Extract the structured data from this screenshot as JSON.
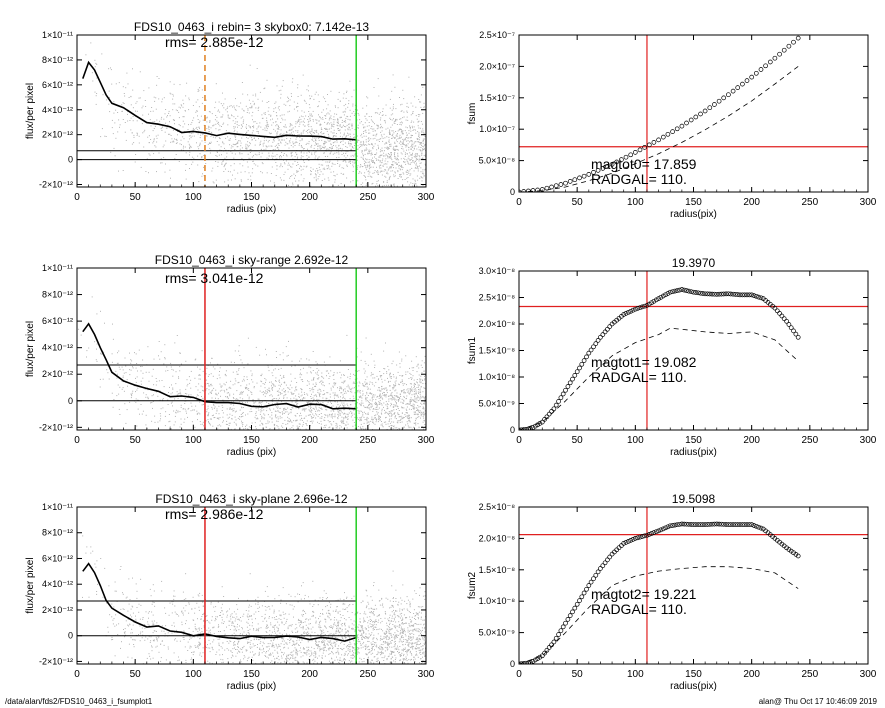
{
  "footer": {
    "path": "/data/alan/fds2/FDS10_0463_i_fsumplot1",
    "stamp": "alan@  Thu Oct 17 10:46:09 2019"
  },
  "colors": {
    "scatter": "#b4b4b4",
    "axes": "#000000",
    "red": "#e02020",
    "green": "#22cc22",
    "orange": "#e08020",
    "profile": "#000000"
  },
  "chart_data": [
    {
      "type": "scatter",
      "title": "FDS10_0463_i rebin= 3    skybox0:  7.142e-13",
      "annotation": "rms= 2.885e-12",
      "xlabel": "radius (pix)",
      "ylabel": "flux/per pixel",
      "xlim": [
        0,
        300
      ],
      "ylim": [
        -2.2e-12,
        1e-11
      ],
      "xticks": [
        0,
        50,
        100,
        150,
        200,
        250,
        300
      ],
      "yticks": [
        {
          "value": 1e-11,
          "label": "1×10⁻¹¹"
        },
        {
          "value": 8e-12,
          "label": "8×10⁻¹²"
        },
        {
          "value": 6e-12,
          "label": "6×10⁻¹²"
        },
        {
          "value": 4e-12,
          "label": "4×10⁻¹²"
        },
        {
          "value": 2e-12,
          "label": "2×10⁻¹²"
        },
        {
          "value": 0,
          "label": "0"
        },
        {
          "value": -2e-12,
          "label": "-2×10⁻¹²"
        }
      ],
      "hlines": [
        0,
        7.142e-13
      ],
      "vlines": [
        {
          "x": 110,
          "color": "orange",
          "dash": true
        },
        {
          "x": 240,
          "color": "green"
        }
      ],
      "profile": {
        "x": [
          5,
          10,
          15,
          20,
          25,
          30,
          40,
          50,
          60,
          70,
          80,
          90,
          100,
          110,
          120,
          130,
          140,
          150,
          160,
          170,
          180,
          190,
          200,
          210,
          220,
          230,
          240
        ],
        "y": [
          6.5e-12,
          7.8e-12,
          7.2e-12,
          6.2e-12,
          5.2e-12,
          4.6e-12,
          4e-12,
          3.4e-12,
          3e-12,
          2.7e-12,
          2.5e-12,
          2.3e-12,
          2.15e-12,
          2.05e-12,
          2e-12,
          1.95e-12,
          1.9e-12,
          1.9e-12,
          1.85e-12,
          1.85e-12,
          1.8e-12,
          1.8e-12,
          1.75e-12,
          1.75e-12,
          1.7e-12,
          1.7e-12,
          1.7e-12
        ]
      },
      "scatter": {
        "count": 2600,
        "spread": 4.6e-12,
        "xmax": 300
      }
    },
    {
      "type": "line",
      "title": "",
      "xlabel": "radius(pix)",
      "ylabel": "fsum",
      "xlim": [
        0,
        300
      ],
      "ylim": [
        0,
        2.5e-07
      ],
      "xticks": [
        0,
        50,
        100,
        150,
        200,
        250,
        300
      ],
      "yticks": [
        {
          "value": 0,
          "label": "0"
        },
        {
          "value": 5e-08,
          "label": "5.0×10⁻⁸"
        },
        {
          "value": 1e-07,
          "label": "1.0×10⁻⁷"
        },
        {
          "value": 1.5e-07,
          "label": "1.5×10⁻⁷"
        },
        {
          "value": 2e-07,
          "label": "2.0×10⁻⁷"
        },
        {
          "value": 2.5e-07,
          "label": "2.5×10⁻⁷"
        }
      ],
      "annotations": [
        "magtot0=  17.859",
        "RADGAL=    110."
      ],
      "hline": 7.2e-08,
      "vline": 110,
      "series": [
        {
          "style": "markers",
          "x": [
            0,
            20,
            40,
            60,
            80,
            100,
            120,
            140,
            160,
            180,
            200,
            220,
            240
          ],
          "y": [
            0,
            4e-09,
            1.4e-08,
            2.8e-08,
            4.4e-08,
            6.3e-08,
            8.3e-08,
            1.05e-07,
            1.29e-07,
            1.55e-07,
            1.83e-07,
            2.13e-07,
            2.45e-07
          ]
        },
        {
          "style": "dashed",
          "x": [
            0,
            20,
            40,
            60,
            80,
            100,
            120,
            140,
            160,
            180,
            200,
            220,
            240
          ],
          "y": [
            0,
            2e-09,
            8e-09,
            1.8e-08,
            3e-08,
            4.5e-08,
            6.1e-08,
            7.9e-08,
            9.9e-08,
            1.21e-07,
            1.45e-07,
            1.72e-07,
            2e-07
          ]
        }
      ]
    },
    {
      "type": "scatter",
      "title": "FDS10_0463_i sky-range  2.692e-12",
      "annotation": "rms= 3.041e-12",
      "xlabel": "radius (pix)",
      "ylabel": "flux/per pixel",
      "xlim": [
        0,
        300
      ],
      "ylim": [
        -2.2e-12,
        1e-11
      ],
      "xticks": [
        0,
        50,
        100,
        150,
        200,
        250,
        300
      ],
      "yticks": [
        {
          "value": 1e-11,
          "label": "1×10⁻¹¹"
        },
        {
          "value": 8e-12,
          "label": "8×10⁻¹²"
        },
        {
          "value": 6e-12,
          "label": "6×10⁻¹²"
        },
        {
          "value": 4e-12,
          "label": "4×10⁻¹²"
        },
        {
          "value": 2e-12,
          "label": "2×10⁻¹²"
        },
        {
          "value": 0,
          "label": "0"
        },
        {
          "value": -2e-12,
          "label": "-2×10⁻¹²"
        }
      ],
      "hlines": [
        0,
        2.692e-12
      ],
      "vlines": [
        {
          "x": 110,
          "color": "red"
        },
        {
          "x": 240,
          "color": "green"
        }
      ],
      "profile": {
        "x": [
          5,
          10,
          15,
          20,
          25,
          30,
          40,
          50,
          60,
          70,
          80,
          90,
          100,
          110,
          120,
          130,
          140,
          150,
          160,
          170,
          180,
          190,
          200,
          210,
          220,
          230,
          240
        ],
        "y": [
          5.2e-12,
          5.8e-12,
          5e-12,
          4e-12,
          3e-12,
          2.2e-12,
          1.6e-12,
          1.1e-12,
          8e-13,
          6e-13,
          4e-13,
          2e-13,
          1e-13,
          0.0,
          -1e-13,
          -1.5e-13,
          -2e-13,
          -2.5e-13,
          -3e-13,
          -3e-13,
          -3.5e-13,
          -4e-13,
          -4e-13,
          -4.5e-13,
          -5e-13,
          -5e-13,
          -5e-13
        ]
      },
      "scatter": {
        "count": 2600,
        "spread": 4.2e-12,
        "xmax": 300
      }
    },
    {
      "type": "line",
      "title": "19.3970",
      "xlabel": "radius(pix)",
      "ylabel": "fsum1",
      "xlim": [
        0,
        300
      ],
      "ylim": [
        0,
        3e-08
      ],
      "xticks": [
        0,
        50,
        100,
        150,
        200,
        250,
        300
      ],
      "yticks": [
        {
          "value": 0,
          "label": "0"
        },
        {
          "value": 5e-09,
          "label": "5.0×10⁻⁹"
        },
        {
          "value": 1e-08,
          "label": "1.0×10⁻⁸"
        },
        {
          "value": 1.5e-08,
          "label": "1.5×10⁻⁸"
        },
        {
          "value": 2e-08,
          "label": "2.0×10⁻⁸"
        },
        {
          "value": 2.5e-08,
          "label": "2.5×10⁻⁸"
        },
        {
          "value": 3e-08,
          "label": "3.0×10⁻⁸"
        }
      ],
      "annotations": [
        "magtot1=  19.082",
        "RADGAL=    110."
      ],
      "hline": 2.33e-08,
      "vline": 110,
      "series": [
        {
          "style": "markers",
          "x": [
            0,
            10,
            20,
            30,
            40,
            50,
            60,
            70,
            80,
            90,
            100,
            110,
            120,
            130,
            140,
            150,
            160,
            170,
            180,
            190,
            200,
            210,
            220,
            230,
            240
          ],
          "y": [
            0,
            2e-10,
            1.5e-09,
            4e-09,
            7.5e-09,
            1.1e-08,
            1.45e-08,
            1.75e-08,
            2e-08,
            2.18e-08,
            2.28e-08,
            2.35e-08,
            2.48e-08,
            2.6e-08,
            2.65e-08,
            2.6e-08,
            2.57e-08,
            2.56e-08,
            2.57e-08,
            2.55e-08,
            2.55e-08,
            2.48e-08,
            2.3e-08,
            2.05e-08,
            1.75e-08
          ]
        },
        {
          "style": "dashed",
          "x": [
            0,
            20,
            40,
            60,
            80,
            100,
            120,
            130,
            140,
            160,
            180,
            200,
            220,
            240
          ],
          "y": [
            0,
            1.5e-09,
            5.5e-09,
            1e-08,
            1.4e-08,
            1.65e-08,
            1.8e-08,
            1.92e-08,
            1.9e-08,
            1.85e-08,
            1.82e-08,
            1.85e-08,
            1.7e-08,
            1.3e-08
          ]
        }
      ]
    },
    {
      "type": "scatter",
      "title": "FDS10_0463_i sky-plane  2.696e-12",
      "annotation": "rms= 2.986e-12",
      "xlabel": "radius (pix)",
      "ylabel": "flux/per pixel",
      "xlim": [
        0,
        300
      ],
      "ylim": [
        -2.2e-12,
        1e-11
      ],
      "xticks": [
        0,
        50,
        100,
        150,
        200,
        250,
        300
      ],
      "yticks": [
        {
          "value": 1e-11,
          "label": "1×10⁻¹¹"
        },
        {
          "value": 8e-12,
          "label": "8×10⁻¹²"
        },
        {
          "value": 6e-12,
          "label": "6×10⁻¹²"
        },
        {
          "value": 4e-12,
          "label": "4×10⁻¹²"
        },
        {
          "value": 2e-12,
          "label": "2×10⁻¹²"
        },
        {
          "value": 0,
          "label": "0"
        },
        {
          "value": -2e-12,
          "label": "-2×10⁻¹²"
        }
      ],
      "hlines": [
        0,
        2.696e-12
      ],
      "vlines": [
        {
          "x": 110,
          "color": "red"
        },
        {
          "x": 240,
          "color": "green"
        }
      ],
      "profile": {
        "x": [
          5,
          10,
          15,
          20,
          25,
          30,
          40,
          50,
          60,
          70,
          80,
          90,
          100,
          110,
          120,
          130,
          140,
          150,
          160,
          170,
          180,
          190,
          200,
          210,
          220,
          230,
          240
        ],
        "y": [
          5e-12,
          5.6e-12,
          4.9e-12,
          3.9e-12,
          2.9e-12,
          2.2e-12,
          1.6e-12,
          1.1e-12,
          8e-13,
          6e-13,
          4e-13,
          2.5e-13,
          1.5e-13,
          5e-14,
          0.0,
          -5e-14,
          -1e-13,
          -1.2e-13,
          -1.5e-13,
          -1.8e-13,
          -2e-13,
          -2e-13,
          -2.5e-13,
          -2.8e-13,
          -3e-13,
          -3e-13,
          -3e-13
        ]
      },
      "scatter": {
        "count": 2600,
        "spread": 4e-12,
        "xmax": 300
      }
    },
    {
      "type": "line",
      "title": "19.5098",
      "xlabel": "radius(pix)",
      "ylabel": "fsum2",
      "xlim": [
        0,
        300
      ],
      "ylim": [
        0,
        2.5e-08
      ],
      "xticks": [
        0,
        50,
        100,
        150,
        200,
        250,
        300
      ],
      "yticks": [
        {
          "value": 0,
          "label": "0"
        },
        {
          "value": 5e-09,
          "label": "5.0×10⁻⁹"
        },
        {
          "value": 1e-08,
          "label": "1.0×10⁻⁸"
        },
        {
          "value": 1.5e-08,
          "label": "1.5×10⁻⁸"
        },
        {
          "value": 2e-08,
          "label": "2.0×10⁻⁸"
        },
        {
          "value": 2.5e-08,
          "label": "2.5×10⁻⁸"
        }
      ],
      "annotations": [
        "magtot2=  19.221",
        "RADGAL=    110."
      ],
      "hline": 2.06e-08,
      "vline": 110,
      "series": [
        {
          "style": "markers",
          "x": [
            0,
            10,
            20,
            30,
            40,
            50,
            60,
            70,
            80,
            90,
            100,
            110,
            120,
            130,
            140,
            150,
            160,
            170,
            180,
            190,
            200,
            210,
            220,
            230,
            240
          ],
          "y": [
            0,
            2e-10,
            1.3e-09,
            3.5e-09,
            6.5e-09,
            9.5e-09,
            1.25e-08,
            1.52e-08,
            1.75e-08,
            1.92e-08,
            2e-08,
            2.05e-08,
            2.12e-08,
            2.2e-08,
            2.23e-08,
            2.22e-08,
            2.22e-08,
            2.23e-08,
            2.22e-08,
            2.22e-08,
            2.22e-08,
            2.15e-08,
            2e-08,
            1.85e-08,
            1.72e-08
          ]
        },
        {
          "style": "dashed",
          "x": [
            0,
            20,
            40,
            60,
            80,
            100,
            120,
            140,
            160,
            180,
            200,
            220,
            240
          ],
          "y": [
            0,
            1.3e-09,
            5e-09,
            9e-09,
            1.25e-08,
            1.4e-08,
            1.48e-08,
            1.52e-08,
            1.55e-08,
            1.55e-08,
            1.52e-08,
            1.45e-08,
            1.2e-08
          ]
        }
      ]
    }
  ]
}
